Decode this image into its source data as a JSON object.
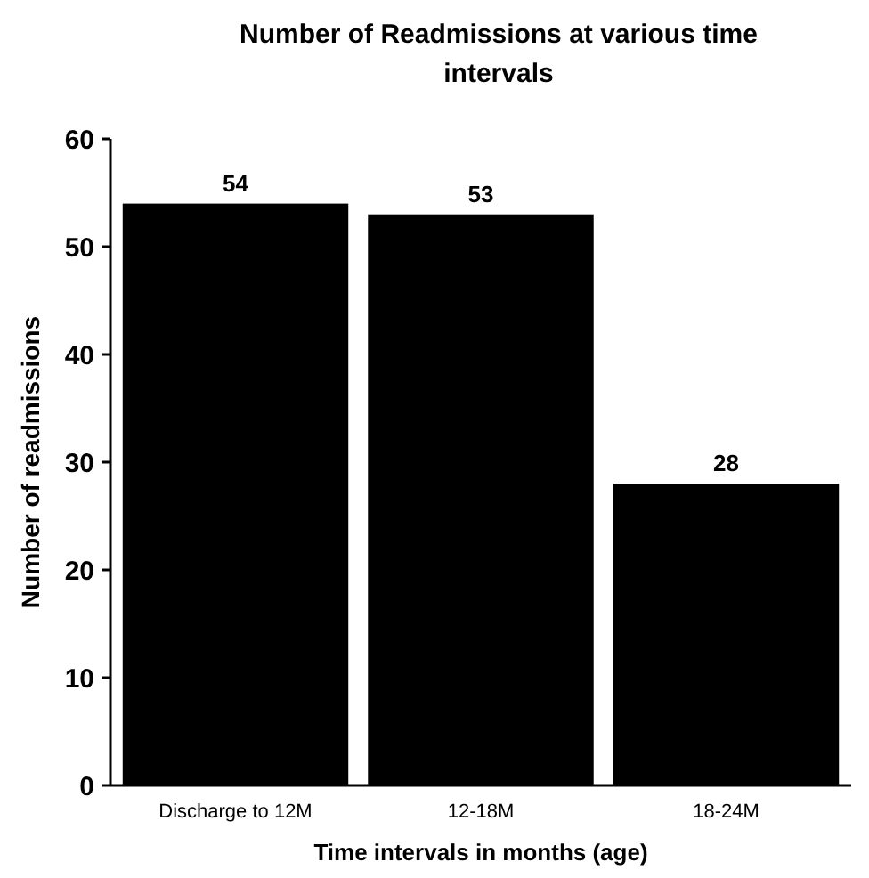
{
  "chart_data": {
    "type": "bar",
    "title": "Number of Readmissions at various time intervals",
    "xlabel": "Time intervals in months (age)",
    "ylabel": "Number of readmissions",
    "categories": [
      "Discharge to 12M",
      "12-18M",
      "18-24M"
    ],
    "values": [
      54,
      53,
      28
    ],
    "color": "#000000",
    "ylim": [
      0,
      60
    ],
    "yticks": [
      0,
      10,
      20,
      30,
      40,
      50,
      60
    ],
    "grid": false,
    "data_labels": true
  }
}
